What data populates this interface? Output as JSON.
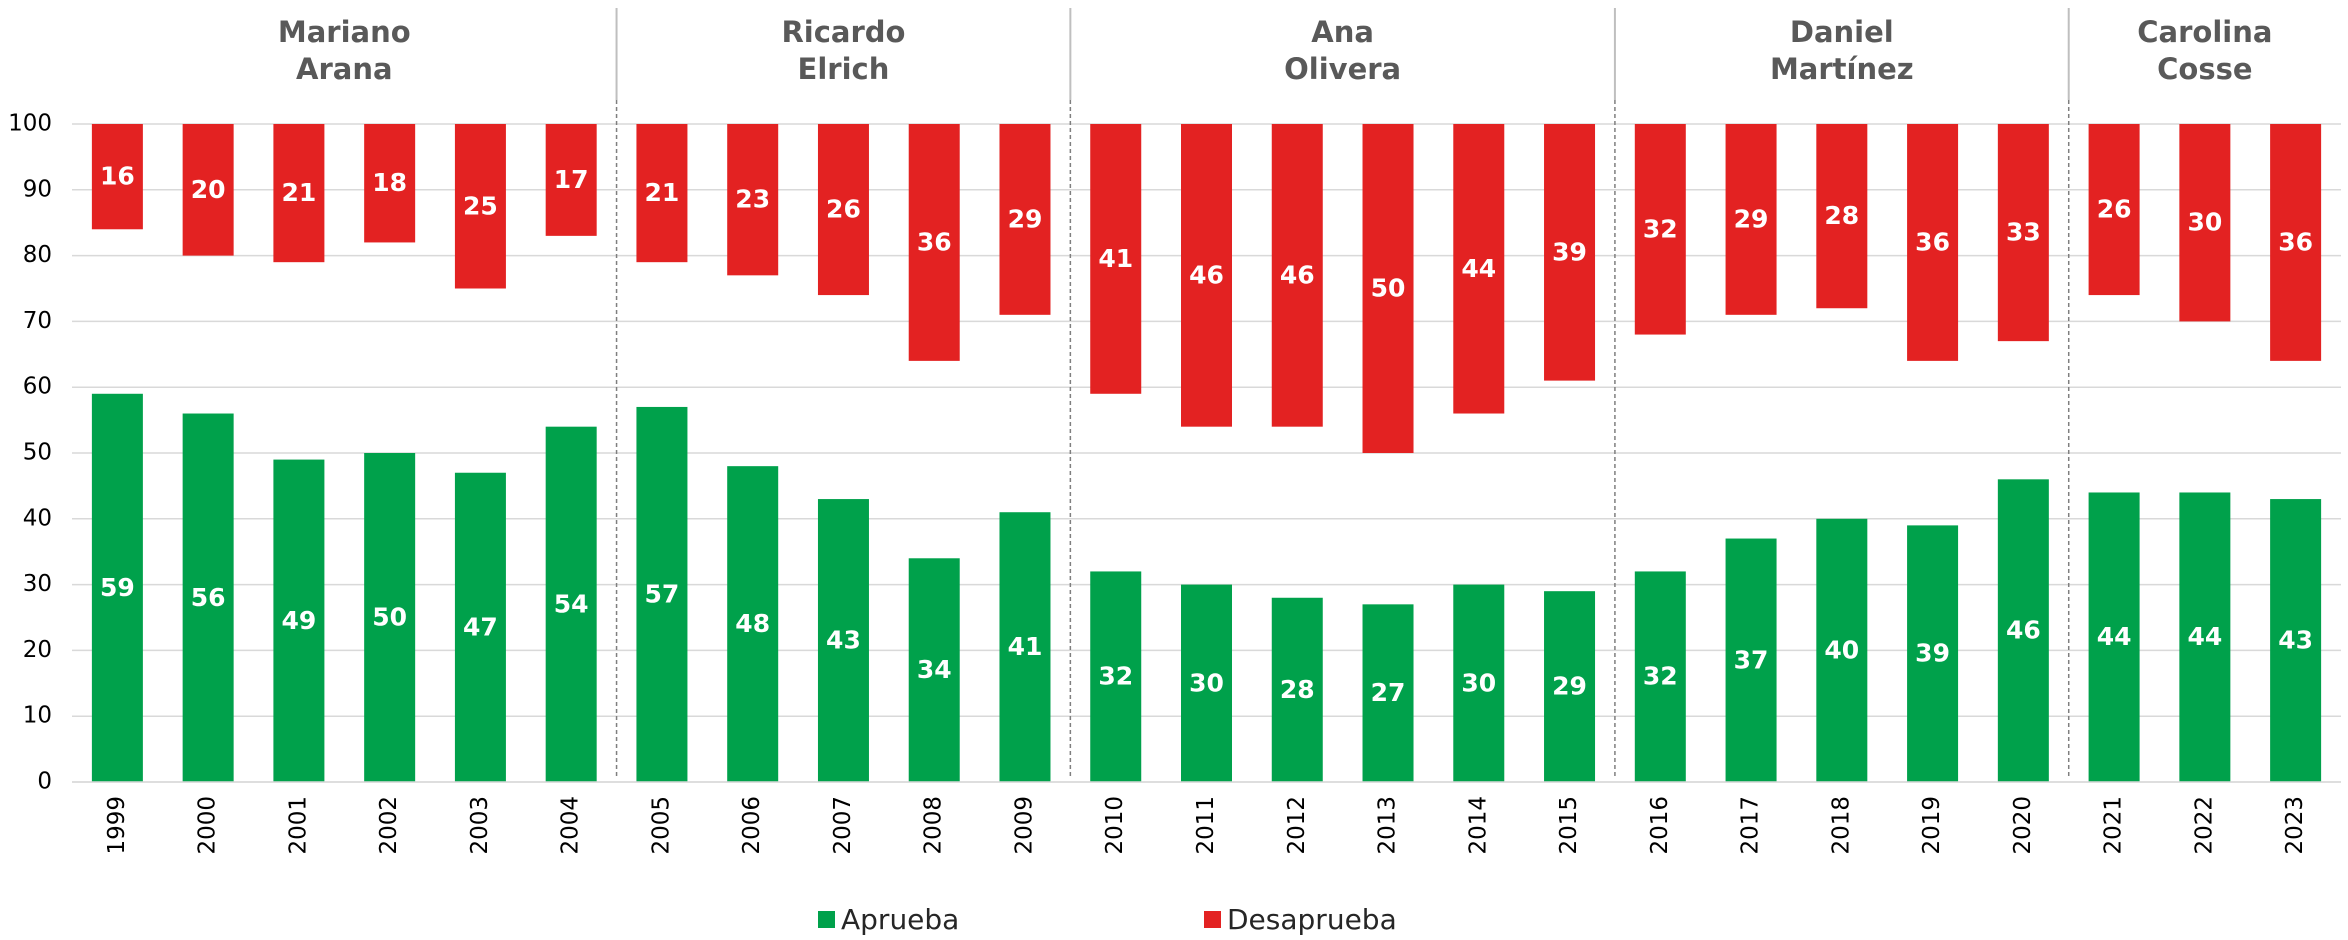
{
  "chart_data": {
    "type": "bar",
    "categories": [
      "1999",
      "2000",
      "2001",
      "2002",
      "2003",
      "2004",
      "2005",
      "2006",
      "2007",
      "2008",
      "2009",
      "2010",
      "2011",
      "2012",
      "2013",
      "2014",
      "2015",
      "2016",
      "2017",
      "2018",
      "2019",
      "2020",
      "2021",
      "2022",
      "2023"
    ],
    "series": [
      {
        "name": "Aprueba",
        "color": "#00a14b",
        "from": "bottom",
        "values": [
          59,
          56,
          49,
          50,
          47,
          54,
          57,
          48,
          43,
          34,
          41,
          32,
          30,
          28,
          27,
          30,
          29,
          32,
          37,
          40,
          39,
          46,
          44,
          44,
          43
        ]
      },
      {
        "name": "Desaprueba",
        "color": "#e32222",
        "from": "top",
        "values": [
          16,
          20,
          21,
          18,
          25,
          17,
          21,
          23,
          26,
          36,
          29,
          41,
          46,
          46,
          50,
          44,
          39,
          32,
          29,
          28,
          36,
          33,
          26,
          30,
          36
        ]
      }
    ],
    "groups": [
      {
        "name": "Mariano\nArana",
        "first": "1999",
        "last": "2004"
      },
      {
        "name": "Ricardo\nElrich",
        "first": "2005",
        "last": "2009"
      },
      {
        "name": "Ana\nOlivera",
        "first": "2010",
        "last": "2015"
      },
      {
        "name": "Daniel\nMartínez",
        "first": "2016",
        "last": "2020"
      },
      {
        "name": "Carolina Cosse",
        "first": "2021",
        "last": "2023"
      }
    ],
    "ylim": [
      0,
      100
    ],
    "yticks": [
      0,
      10,
      20,
      30,
      40,
      50,
      60,
      70,
      80,
      90,
      100
    ],
    "grid": true,
    "legend": "bottom"
  }
}
